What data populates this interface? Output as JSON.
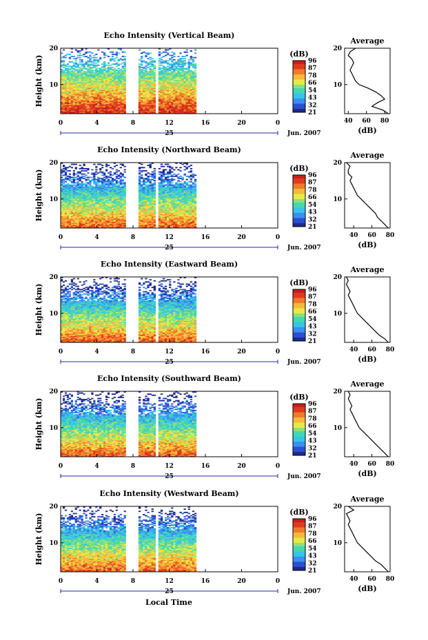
{
  "figure": {
    "xlabel_common": "Local Time",
    "date_suffix": "Jun. 2007",
    "day_label": "25"
  },
  "colors": {
    "colormap": [
      "#1f2a8a",
      "#2b4fd0",
      "#3b8ff0",
      "#36c4e8",
      "#45d8b0",
      "#8fe07a",
      "#e8e84a",
      "#f6b93b",
      "#f07a2a",
      "#e03a1e",
      "#c81e1e"
    ],
    "missing": "#ffffff",
    "frame": "#000000",
    "date_axis": "#1a2a9a"
  },
  "chart_data": [
    {
      "type": "heatmap",
      "title": "Echo Intensity (Vertical Beam)",
      "ylabel": "Height (km)",
      "xlim": [
        0,
        24
      ],
      "ylim": [
        2,
        20
      ],
      "xticks": [
        "0",
        "4",
        "8",
        "12",
        "16",
        "20",
        "0"
      ],
      "yticks": [
        "10",
        "20"
      ],
      "data_hours": [
        [
          0,
          7.2
        ],
        [
          8.6,
          10.5
        ],
        [
          10.8,
          15
        ]
      ],
      "colorbar": {
        "label": "(dB)",
        "ticks": [
          "96",
          "87",
          "78",
          "66",
          "54",
          "43",
          "32",
          "21"
        ]
      },
      "profile": {
        "title": "Average",
        "xlabel": "(dB)",
        "xticks": [
          "40",
          "60",
          "80"
        ],
        "xlim": [
          36,
          86
        ],
        "height_km": [
          2,
          3,
          4,
          5,
          6,
          7,
          8,
          9,
          10,
          11,
          12,
          13,
          14,
          15,
          16,
          17,
          18,
          19,
          20
        ],
        "db": [
          84,
          78,
          66,
          72,
          80,
          76,
          70,
          62,
          52,
          48,
          46,
          44,
          42,
          44,
          46,
          44,
          40,
          42,
          48
        ]
      }
    },
    {
      "type": "heatmap",
      "title": "Echo Intensity (Northward Beam)",
      "ylabel": "Height (km)",
      "xlim": [
        0,
        24
      ],
      "ylim": [
        2,
        20
      ],
      "xticks": [
        "0",
        "4",
        "8",
        "12",
        "16",
        "20",
        "0"
      ],
      "yticks": [
        "10",
        "20"
      ],
      "data_hours": [
        [
          0,
          7.2
        ],
        [
          8.6,
          10.5
        ],
        [
          10.8,
          15
        ]
      ],
      "colorbar": {
        "label": "(dB)",
        "ticks": [
          "96",
          "87",
          "78",
          "66",
          "54",
          "43",
          "32",
          "21"
        ]
      },
      "profile": {
        "title": "Average",
        "xlabel": "(dB)",
        "xticks": [
          "40",
          "60",
          "80"
        ],
        "xlim": [
          30,
          80
        ],
        "height_km": [
          2,
          3,
          4,
          5,
          6,
          7,
          8,
          9,
          10,
          11,
          12,
          13,
          14,
          15,
          16,
          17,
          18,
          19,
          20
        ],
        "db": [
          78,
          74,
          70,
          66,
          64,
          60,
          56,
          52,
          48,
          44,
          42,
          40,
          38,
          36,
          38,
          34,
          34,
          36,
          32
        ]
      }
    },
    {
      "type": "heatmap",
      "title": "Echo Intensity (Eastward Beam)",
      "ylabel": "Height (km)",
      "xlim": [
        0,
        24
      ],
      "ylim": [
        2,
        20
      ],
      "xticks": [
        "0",
        "4",
        "8",
        "12",
        "16",
        "20",
        "0"
      ],
      "yticks": [
        "10",
        "20"
      ],
      "data_hours": [
        [
          0,
          7.2
        ],
        [
          8.6,
          10.5
        ],
        [
          10.8,
          15
        ]
      ],
      "colorbar": {
        "label": "(dB)",
        "ticks": [
          "96",
          "87",
          "78",
          "66",
          "54",
          "43",
          "32",
          "21"
        ]
      },
      "profile": {
        "title": "Average",
        "xlabel": "(dB)",
        "xticks": [
          "40",
          "60",
          "80"
        ],
        "xlim": [
          30,
          80
        ],
        "height_km": [
          2,
          3,
          4,
          5,
          6,
          7,
          8,
          9,
          10,
          11,
          12,
          13,
          14,
          15,
          16,
          17,
          18,
          19,
          20
        ],
        "db": [
          78,
          74,
          68,
          64,
          60,
          56,
          52,
          48,
          44,
          42,
          40,
          38,
          36,
          34,
          36,
          34,
          32,
          34,
          32
        ]
      }
    },
    {
      "type": "heatmap",
      "title": "Echo Intensity (Southward Beam)",
      "ylabel": "Height (km)",
      "xlim": [
        0,
        24
      ],
      "ylim": [
        2,
        20
      ],
      "xticks": [
        "0",
        "4",
        "8",
        "12",
        "16",
        "20",
        "0"
      ],
      "yticks": [
        "10",
        "20"
      ],
      "data_hours": [
        [
          0,
          7.2
        ],
        [
          8.6,
          10.5
        ],
        [
          10.8,
          15
        ]
      ],
      "colorbar": {
        "label": "(dB)",
        "ticks": [
          "96",
          "87",
          "78",
          "66",
          "54",
          "43",
          "32",
          "21"
        ]
      },
      "profile": {
        "title": "Average",
        "xlabel": "(dB)",
        "xticks": [
          "40",
          "60",
          "80"
        ],
        "xlim": [
          30,
          80
        ],
        "height_km": [
          2,
          3,
          4,
          5,
          6,
          7,
          8,
          9,
          10,
          11,
          12,
          13,
          14,
          15,
          16,
          17,
          18,
          19,
          20
        ],
        "db": [
          78,
          74,
          70,
          66,
          62,
          58,
          54,
          50,
          46,
          44,
          42,
          40,
          38,
          36,
          38,
          36,
          34,
          36,
          34
        ]
      }
    },
    {
      "type": "heatmap",
      "title": "Echo Intensity (Westward Beam)",
      "ylabel": "Height (km)",
      "xlim": [
        0,
        24
      ],
      "ylim": [
        2,
        20
      ],
      "xticks": [
        "0",
        "4",
        "8",
        "12",
        "16",
        "20",
        "0"
      ],
      "yticks": [
        "10",
        "20"
      ],
      "data_hours": [
        [
          0,
          7.2
        ],
        [
          8.6,
          10.5
        ],
        [
          10.8,
          15
        ]
      ],
      "colorbar": {
        "label": "(dB)",
        "ticks": [
          "96",
          "87",
          "78",
          "66",
          "54",
          "43",
          "32",
          "21"
        ]
      },
      "profile": {
        "title": "Average",
        "xlabel": "(dB)",
        "xticks": [
          "40",
          "60",
          "80"
        ],
        "xlim": [
          30,
          80
        ],
        "height_km": [
          2,
          3,
          4,
          5,
          6,
          7,
          8,
          9,
          10,
          11,
          12,
          13,
          14,
          15,
          16,
          17,
          18,
          19,
          20
        ],
        "db": [
          78,
          74,
          70,
          64,
          60,
          56,
          52,
          48,
          44,
          42,
          40,
          38,
          36,
          34,
          36,
          34,
          32,
          40,
          34
        ]
      }
    }
  ]
}
